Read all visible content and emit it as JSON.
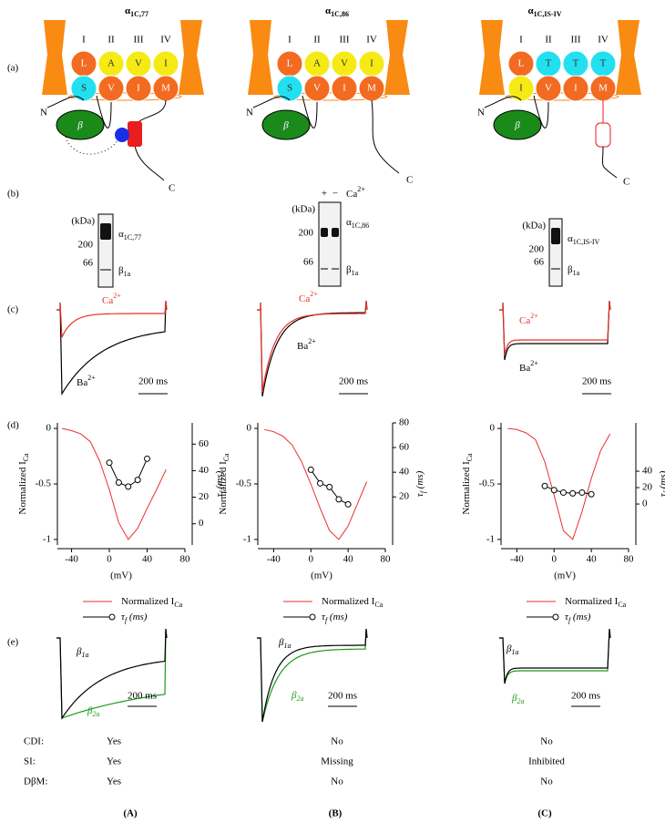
{
  "panel_labels": [
    "(a)",
    "(b)",
    "(c)",
    "(d)",
    "(e)"
  ],
  "summary_labels": [
    "CDI:",
    "SI:",
    "DβM:"
  ],
  "columns": [
    {
      "title": {
        "text": "α",
        "sub": "1C,77"
      },
      "repeats": [
        "I",
        "II",
        "III",
        "IV"
      ],
      "subunits": [
        [
          "L",
          "A",
          "V",
          "I"
        ],
        [
          "S",
          "V",
          "I",
          "M"
        ]
      ],
      "subunit_colors": [
        [
          "#f26b21",
          "#f5ea14",
          "#f5ea14",
          "#f5ea14"
        ],
        [
          "#22e0f0",
          "#f26b21",
          "#f26b21",
          "#f26b21"
        ]
      ],
      "n_label": "N",
      "c_label": "C",
      "beta": "β",
      "blot": {
        "unit": "(kDa)",
        "markers": [
          "200",
          "66"
        ],
        "bands": [
          {
            "text": "α",
            "sub": "1C,77"
          },
          {
            "text": "β",
            "sub": "1a"
          }
        ]
      },
      "ion_labels": [
        {
          "text": "Ca",
          "sup": "2+"
        },
        {
          "text": "Ba",
          "sup": "2+"
        }
      ],
      "ion_scale": "200 ms",
      "chart": {
        "type": "line",
        "xlabel": "(mV)",
        "ylabel": {
          "text": "Normalized I",
          "sub": "Ca"
        },
        "y2label": {
          "text": "τ",
          "sub": "f",
          "after": " (ms)"
        },
        "xlim": [
          -55,
          80
        ],
        "xticks": [
          -40,
          0,
          40,
          80
        ],
        "ylim": [
          -1.05,
          0.05
        ],
        "yticks": [
          0,
          -0.5,
          -1
        ],
        "y2lim": [
          -16,
          76
        ],
        "y2ticks": [
          0,
          20,
          40,
          60
        ],
        "series": [
          {
            "name": {
              "text": "Normalized I",
              "sub": "Ca"
            },
            "color": "#e8302a",
            "x": [
              -50,
              -40,
              -30,
              -20,
              -10,
              0,
              10,
              20,
              30,
              40,
              50,
              60
            ],
            "values": [
              0,
              -0.02,
              -0.05,
              -0.12,
              -0.3,
              -0.55,
              -0.85,
              -1.0,
              -0.9,
              -0.72,
              -0.55,
              -0.37
            ]
          },
          {
            "name": {
              "text": "τ",
              "sub": "f",
              "after": " (ms)"
            },
            "color": "#000000",
            "axis": "y2",
            "x": [
              0,
              10,
              20,
              30,
              40
            ],
            "values": [
              46,
              31,
              28,
              33,
              49
            ]
          }
        ]
      },
      "beta_labels": [
        {
          "text": "β",
          "sub": "1a"
        },
        {
          "text": "β",
          "sub": "2a"
        }
      ],
      "beta_scale": "200 ms",
      "summary": [
        "Yes",
        "Yes",
        "Yes"
      ],
      "footer": "(A)"
    },
    {
      "title": {
        "text": "α",
        "sub": "1C,86"
      },
      "repeats": [
        "I",
        "II",
        "III",
        "IV"
      ],
      "subunits": [
        [
          "L",
          "A",
          "V",
          "I"
        ],
        [
          "S",
          "V",
          "I",
          "M"
        ]
      ],
      "subunit_colors": [
        [
          "#f26b21",
          "#f5ea14",
          "#f5ea14",
          "#f5ea14"
        ],
        [
          "#22e0f0",
          "#f26b21",
          "#f26b21",
          "#f26b21"
        ]
      ],
      "n_label": "N",
      "c_label": "C",
      "beta": "β",
      "blot": {
        "unit": "(kDa)",
        "markers": [
          "200",
          "66"
        ],
        "bands": [
          {
            "text": "α",
            "sub": "1C,86"
          },
          {
            "text": "β",
            "sub": "1a"
          }
        ],
        "lanes": [
          "+",
          "−"
        ],
        "lane_ion": {
          "text": "Ca",
          "sup": "2+"
        }
      },
      "ion_labels": [
        {
          "text": "Ca",
          "sup": "2+"
        },
        {
          "text": "Ba",
          "sup": "2+"
        }
      ],
      "ion_scale": "200 ms",
      "chart": {
        "type": "line",
        "xlabel": "(mV)",
        "ylabel": {
          "text": "Normalized I",
          "sub": "Ca"
        },
        "y2label": {
          "text": "τ",
          "sub": "f",
          "after": " (ms)"
        },
        "xlim": [
          -57,
          80
        ],
        "xticks": [
          -40,
          0,
          40,
          80
        ],
        "ylim": [
          -1.05,
          0.05
        ],
        "yticks": [
          0,
          -0.5,
          -1
        ],
        "y2lim": [
          -19,
          80
        ],
        "y2ticks": [
          20,
          40,
          60,
          80
        ],
        "series": [
          {
            "name": {
              "text": "Normalized I",
              "sub": "Ca"
            },
            "color": "#e8302a",
            "x": [
              -50,
              -40,
              -30,
              -20,
              -10,
              0,
              10,
              20,
              30,
              40,
              50,
              60
            ],
            "values": [
              -0.01,
              -0.03,
              -0.07,
              -0.15,
              -0.3,
              -0.5,
              -0.72,
              -0.92,
              -1.0,
              -0.88,
              -0.68,
              -0.48
            ]
          },
          {
            "name": {
              "text": "τ",
              "sub": "f",
              "after": " (ms)"
            },
            "color": "#000000",
            "axis": "y2",
            "x": [
              0,
              10,
              20,
              30,
              40
            ],
            "values": [
              42,
              31,
              28,
              18,
              14
            ]
          }
        ]
      },
      "beta_labels": [
        {
          "text": "β",
          "sub": "1a"
        },
        {
          "text": "β",
          "sub": "2a"
        }
      ],
      "beta_scale": "200 ms",
      "summary": [
        "No",
        "Missing",
        "No"
      ],
      "footer": "(B)"
    },
    {
      "title": {
        "text": "α",
        "sub": "1C,IS-IV"
      },
      "repeats": [
        "I",
        "II",
        "III",
        "IV"
      ],
      "subunits": [
        [
          "L",
          "T",
          "T",
          "T"
        ],
        [
          "I",
          "V",
          "I",
          "M"
        ]
      ],
      "subunit_colors": [
        [
          "#f26b21",
          "#22e0f0",
          "#22e0f0",
          "#22e0f0"
        ],
        [
          "#f5ea14",
          "#f26b21",
          "#f26b21",
          "#f26b21"
        ]
      ],
      "n_label": "N",
      "c_label": "C",
      "beta": "β",
      "blot": {
        "unit": "(kDa)",
        "markers": [
          "200",
          "66"
        ],
        "bands": [
          {
            "text": "α",
            "sub": "1C,IS-IV"
          },
          {
            "text": "β",
            "sub": "1a"
          }
        ]
      },
      "ion_labels": [
        {
          "text": "Ca",
          "sup": "2+"
        },
        {
          "text": "Ba",
          "sup": "2+"
        }
      ],
      "ion_scale": "200 ms",
      "chart": {
        "type": "line",
        "xlabel": "(mV)",
        "ylabel": {
          "text": "Normalized I",
          "sub": "Ca"
        },
        "y2label": {
          "text": "τ",
          "sub": "f",
          "after": " (ms)"
        },
        "xlim": [
          -57,
          80
        ],
        "xticks": [
          -40,
          0,
          40,
          80
        ],
        "ylim": [
          -1.05,
          0.05
        ],
        "yticks": [
          0,
          -0.5,
          -1
        ],
        "y2lim": [
          -50,
          99
        ],
        "y2ticks": [
          0,
          20,
          40
        ],
        "series": [
          {
            "name": {
              "text": "Normalized I",
              "sub": "Ca"
            },
            "color": "#e8302a",
            "x": [
              -50,
              -40,
              -30,
              -20,
              -10,
              0,
              10,
              20,
              30,
              40,
              50,
              60
            ],
            "values": [
              0,
              -0.01,
              -0.04,
              -0.1,
              -0.3,
              -0.6,
              -0.92,
              -1.0,
              -0.75,
              -0.45,
              -0.2,
              -0.05
            ]
          },
          {
            "name": {
              "text": "τ",
              "sub": "f",
              "after": " (ms)"
            },
            "color": "#000000",
            "axis": "y2",
            "x": [
              -10,
              0,
              10,
              20,
              30,
              40
            ],
            "values": [
              22,
              17,
              14,
              13,
              14,
              12
            ]
          }
        ]
      },
      "beta_labels": [
        {
          "text": "β",
          "sub": "1a"
        },
        {
          "text": "β",
          "sub": "2a"
        }
      ],
      "beta_scale": "200 ms",
      "summary": [
        "No",
        "Inhibited",
        "No"
      ],
      "footer": "(C)"
    }
  ]
}
